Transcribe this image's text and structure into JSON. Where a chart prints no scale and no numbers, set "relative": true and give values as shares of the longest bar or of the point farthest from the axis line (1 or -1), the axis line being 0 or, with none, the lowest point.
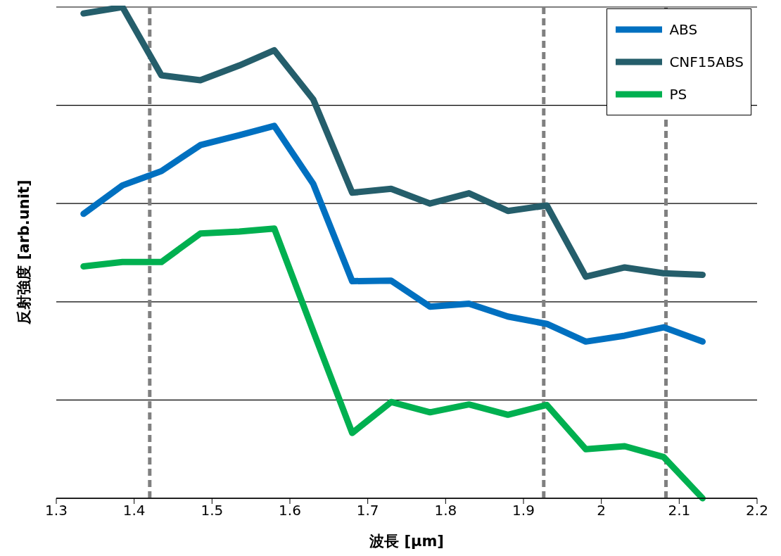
{
  "chart_data": {
    "type": "line",
    "xlabel": "波長 [μm]",
    "ylabel": "反射強度 [arb.unit]",
    "relative": true,
    "x": [
      1.335,
      1.385,
      1.435,
      1.485,
      1.535,
      1.58,
      1.63,
      1.68,
      1.73,
      1.78,
      1.83,
      1.88,
      1.93,
      1.98,
      2.03,
      2.08,
      2.13
    ],
    "series": [
      {
        "name": "ABS",
        "color": "#0070c0",
        "values": [
          0.579,
          0.637,
          0.666,
          0.719,
          0.739,
          0.758,
          0.64,
          0.442,
          0.443,
          0.39,
          0.396,
          0.37,
          0.355,
          0.319,
          0.331,
          0.348,
          0.319
        ]
      },
      {
        "name": "CNF15ABS",
        "color": "#255e6b",
        "values": [
          0.987,
          1,
          0.861,
          0.851,
          0.881,
          0.912,
          0.812,
          0.622,
          0.63,
          0.6,
          0.621,
          0.585,
          0.596,
          0.451,
          0.47,
          0.458,
          0.455
        ]
      },
      {
        "name": "PS",
        "color": "#00b050",
        "values": [
          0.472,
          0.481,
          0.481,
          0.539,
          0.543,
          0.549,
          0.34,
          0.133,
          0.196,
          0.175,
          0.191,
          0.17,
          0.19,
          0.1,
          0.106,
          0.084,
          0
        ]
      }
    ],
    "xlim": [
      1.3,
      2.2
    ],
    "xticks": [
      1.3,
      1.4,
      1.5,
      1.6,
      1.7,
      1.8,
      1.9,
      2,
      2.1,
      2.2
    ],
    "ref_lines": [
      {
        "axis": "x",
        "value": 1.42,
        "color": "#808080",
        "line_style": "dashed"
      },
      {
        "axis": "x",
        "value": 1.926,
        "color": "#808080",
        "line_style": "dashed"
      },
      {
        "axis": "x",
        "value": 2.083,
        "color": "#808080",
        "line_style": "dashed"
      }
    ],
    "grid": "y",
    "legend": "top right",
    "line_style": "solid"
  }
}
